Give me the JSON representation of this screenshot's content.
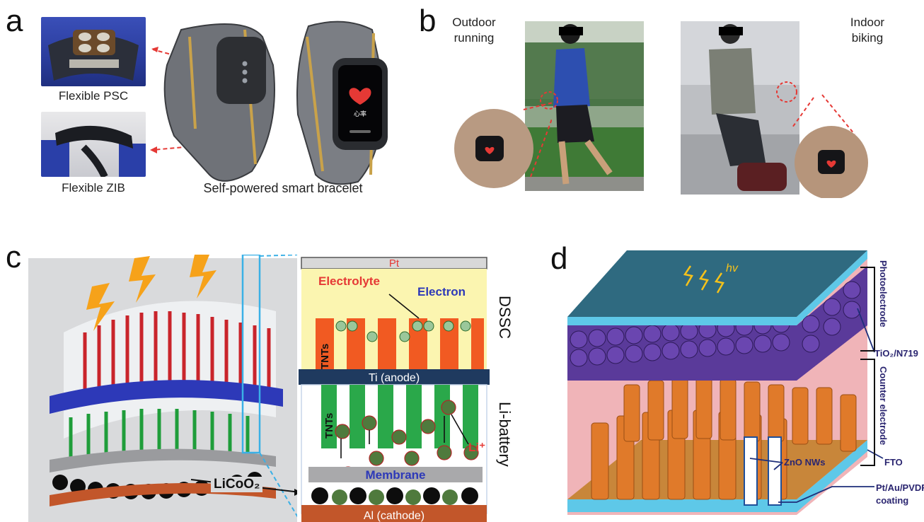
{
  "panels": {
    "a": {
      "label": "a",
      "captions": {
        "psc": "Flexible PSC",
        "zib": "Flexible ZIB",
        "bracelet": "Self-powered smart bracelet"
      },
      "screen_text": "心率"
    },
    "b": {
      "label": "b",
      "captions": {
        "outdoor_1": "Outdoor",
        "outdoor_2": "running",
        "indoor_1": "Indoor",
        "indoor_2": "biking"
      }
    },
    "c": {
      "label": "c",
      "labels": {
        "pt": "Pt",
        "electrolyte": "Electrolyte",
        "electron": "Electron",
        "dssc": "DSSC",
        "tnts_top": "TNTs",
        "ti_anode": "Ti (anode)",
        "tnts_bottom": "TNTs",
        "li_battery": "Li-battery",
        "li_plus": "Li⁺",
        "membrane": "Membrane",
        "al_cathode": "Al (cathode)",
        "licoo2": "LiCoO₂"
      }
    },
    "d": {
      "label": "d",
      "labels": {
        "hv": "hv",
        "photoelectrode": "Photoelectrode",
        "tio2": "TiO₂/N719",
        "counter_electrode": "Counter electrode",
        "zno": "ZnO NWs",
        "fto": "FTO",
        "ptau_1": "Pt/Au/PVDF",
        "ptau_2": "coating"
      }
    }
  },
  "colors": {
    "ti_bar": "#1f3a5f",
    "tnt_orange": "#f15a22",
    "tnt_green": "#2aa84a",
    "electrolyte": "#fbf5b0",
    "glass": "#5ec8e8",
    "pink": "#f0b4b8"
  }
}
